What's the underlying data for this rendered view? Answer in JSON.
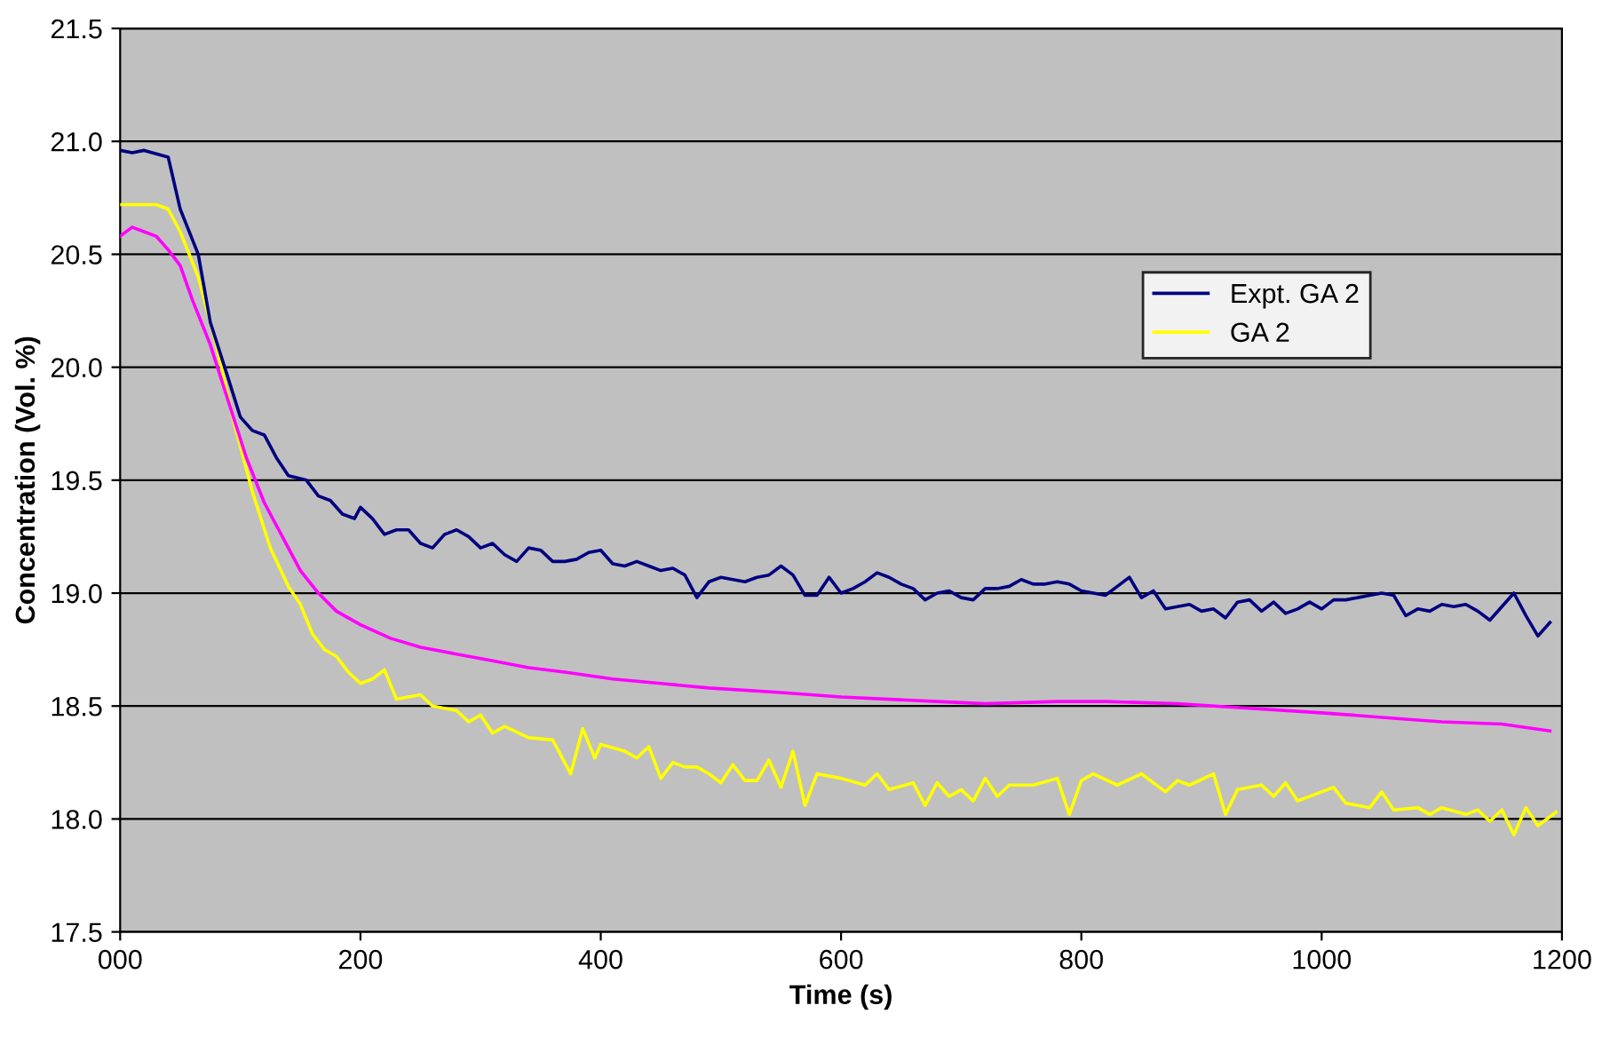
{
  "chart_data": {
    "type": "line",
    "xlabel": "Time (s)",
    "ylabel": "Concentration (Vol. %)",
    "xlim": [
      0,
      1200
    ],
    "xticks": [
      {
        "value": 0,
        "label": "000"
      },
      200,
      400,
      600,
      800,
      1000,
      1200
    ],
    "ylim": [
      17.5,
      21.5
    ],
    "yticks": [
      17.5,
      {
        "value": 18,
        "label": "18.0"
      },
      18.5,
      {
        "value": 19,
        "label": "19.0"
      },
      19.5,
      {
        "value": 20,
        "label": "20.0"
      },
      20.5,
      {
        "value": 21,
        "label": "21.0"
      },
      21.5
    ],
    "grid": "y",
    "legend": "top right",
    "marker": "none",
    "line_style": "solid",
    "series": [
      {
        "name": "Expt. GA 2",
        "color": "#000080",
        "x": [
          0,
          10,
          20,
          40,
          50,
          65,
          75,
          90,
          100,
          110,
          120,
          130,
          140,
          155,
          165,
          175,
          185,
          195,
          200,
          210,
          220,
          230,
          240,
          250,
          260,
          270,
          280,
          290,
          300,
          310,
          320,
          330,
          340,
          350,
          360,
          370,
          380,
          390,
          400,
          410,
          420,
          430,
          440,
          450,
          460,
          470,
          480,
          490,
          500,
          510,
          520,
          530,
          540,
          550,
          560,
          570,
          580,
          590,
          600,
          610,
          620,
          630,
          640,
          650,
          660,
          670,
          680,
          690,
          700,
          710,
          720,
          730,
          740,
          750,
          760,
          770,
          780,
          790,
          800,
          810,
          820,
          830,
          840,
          850,
          860,
          870,
          880,
          890,
          900,
          910,
          920,
          930,
          940,
          950,
          960,
          970,
          980,
          990,
          1000,
          1010,
          1020,
          1030,
          1040,
          1050,
          1060,
          1070,
          1080,
          1090,
          1100,
          1110,
          1120,
          1130,
          1140,
          1150,
          1160,
          1170,
          1180,
          1190
        ],
        "values": [
          20.96,
          20.95,
          20.96,
          20.93,
          20.7,
          20.5,
          20.2,
          19.95,
          19.78,
          19.72,
          19.7,
          19.6,
          19.52,
          19.5,
          19.43,
          19.41,
          19.35,
          19.33,
          19.38,
          19.33,
          19.26,
          19.28,
          19.28,
          19.22,
          19.2,
          19.26,
          19.28,
          19.25,
          19.2,
          19.22,
          19.17,
          19.14,
          19.2,
          19.19,
          19.14,
          19.14,
          19.15,
          19.18,
          19.19,
          19.13,
          19.12,
          19.14,
          19.12,
          19.1,
          19.11,
          19.08,
          18.98,
          19.05,
          19.07,
          19.06,
          19.05,
          19.07,
          19.08,
          19.12,
          19.08,
          18.99,
          18.99,
          19.07,
          19.0,
          19.02,
          19.05,
          19.09,
          19.07,
          19.04,
          19.02,
          18.97,
          19.0,
          19.01,
          18.98,
          18.97,
          19.02,
          19.02,
          19.03,
          19.06,
          19.04,
          19.04,
          19.05,
          19.04,
          19.01,
          19.0,
          18.99,
          19.03,
          19.07,
          18.98,
          19.01,
          18.93,
          18.94,
          18.95,
          18.92,
          18.93,
          18.89,
          18.96,
          18.97,
          18.92,
          18.96,
          18.91,
          18.93,
          18.96,
          18.93,
          18.97,
          18.97,
          18.98,
          18.99,
          19.0,
          18.99,
          18.9,
          18.93,
          18.92,
          18.95,
          18.94,
          18.95,
          18.92,
          18.88,
          18.94,
          19.0,
          18.9,
          18.81,
          18.87
        ]
      },
      {
        "color": "#ff00ff",
        "x": [
          0,
          10,
          20,
          30,
          40,
          50,
          60,
          75,
          90,
          105,
          120,
          135,
          150,
          165,
          180,
          200,
          225,
          250,
          280,
          310,
          340,
          370,
          410,
          450,
          490,
          550,
          600,
          680,
          720,
          780,
          820,
          880,
          940,
          1000,
          1050,
          1100,
          1150,
          1190
        ],
        "values": [
          20.58,
          20.62,
          20.6,
          20.58,
          20.52,
          20.45,
          20.3,
          20.1,
          19.85,
          19.6,
          19.4,
          19.25,
          19.1,
          19.0,
          18.92,
          18.86,
          18.8,
          18.76,
          18.73,
          18.7,
          18.67,
          18.65,
          18.62,
          18.6,
          18.58,
          18.56,
          18.54,
          18.52,
          18.51,
          18.52,
          18.52,
          18.51,
          18.49,
          18.47,
          18.45,
          18.43,
          18.42,
          18.39
        ]
      },
      {
        "name": "GA 2",
        "color": "#ffff00",
        "x": [
          0,
          30,
          40,
          50,
          65,
          80,
          95,
          110,
          125,
          140,
          150,
          160,
          170,
          180,
          190,
          200,
          210,
          220,
          230,
          250,
          260,
          280,
          290,
          300,
          310,
          320,
          340,
          360,
          375,
          385,
          395,
          400,
          420,
          430,
          440,
          450,
          460,
          470,
          480,
          490,
          500,
          510,
          520,
          530,
          540,
          550,
          560,
          570,
          580,
          600,
          620,
          630,
          640,
          660,
          670,
          680,
          690,
          700,
          710,
          720,
          730,
          740,
          760,
          780,
          790,
          800,
          810,
          830,
          850,
          870,
          880,
          890,
          910,
          920,
          930,
          950,
          960,
          970,
          980,
          1000,
          1010,
          1020,
          1040,
          1050,
          1060,
          1080,
          1090,
          1100,
          1120,
          1130,
          1140,
          1150,
          1160,
          1170,
          1180,
          1195
        ],
        "values": [
          20.72,
          20.72,
          20.7,
          20.6,
          20.4,
          20.1,
          19.75,
          19.45,
          19.2,
          19.03,
          18.95,
          18.82,
          18.75,
          18.72,
          18.65,
          18.6,
          18.62,
          18.66,
          18.53,
          18.55,
          18.5,
          18.48,
          18.43,
          18.46,
          18.38,
          18.41,
          18.36,
          18.35,
          18.2,
          18.4,
          18.27,
          18.33,
          18.3,
          18.27,
          18.32,
          18.18,
          18.25,
          18.23,
          18.23,
          18.2,
          18.16,
          18.24,
          18.17,
          18.17,
          18.26,
          18.14,
          18.3,
          18.06,
          18.2,
          18.18,
          18.15,
          18.2,
          18.13,
          18.16,
          18.06,
          18.16,
          18.1,
          18.13,
          18.08,
          18.18,
          18.1,
          18.15,
          18.15,
          18.18,
          18.02,
          18.17,
          18.2,
          18.15,
          18.2,
          18.12,
          18.17,
          18.15,
          18.2,
          18.02,
          18.13,
          18.15,
          18.1,
          18.16,
          18.08,
          18.12,
          18.14,
          18.07,
          18.05,
          18.12,
          18.04,
          18.05,
          18.02,
          18.05,
          18.02,
          18.04,
          17.99,
          18.04,
          17.93,
          18.05,
          17.97,
          18.03
        ]
      }
    ]
  }
}
